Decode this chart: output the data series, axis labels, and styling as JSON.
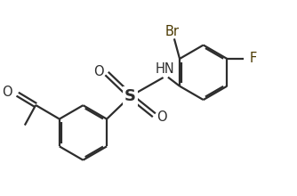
{
  "background_color": "#ffffff",
  "line_color": "#2d2d2d",
  "line_width": 1.6,
  "dbo": 0.045,
  "label_color": "#2d2d2d",
  "br_color": "#4a3800",
  "f_color": "#4a3800",
  "figsize": [
    3.34,
    2.2
  ],
  "dpi": 100,
  "xlim": [
    -2.5,
    5.5
  ],
  "ylim": [
    -2.8,
    2.5
  ]
}
